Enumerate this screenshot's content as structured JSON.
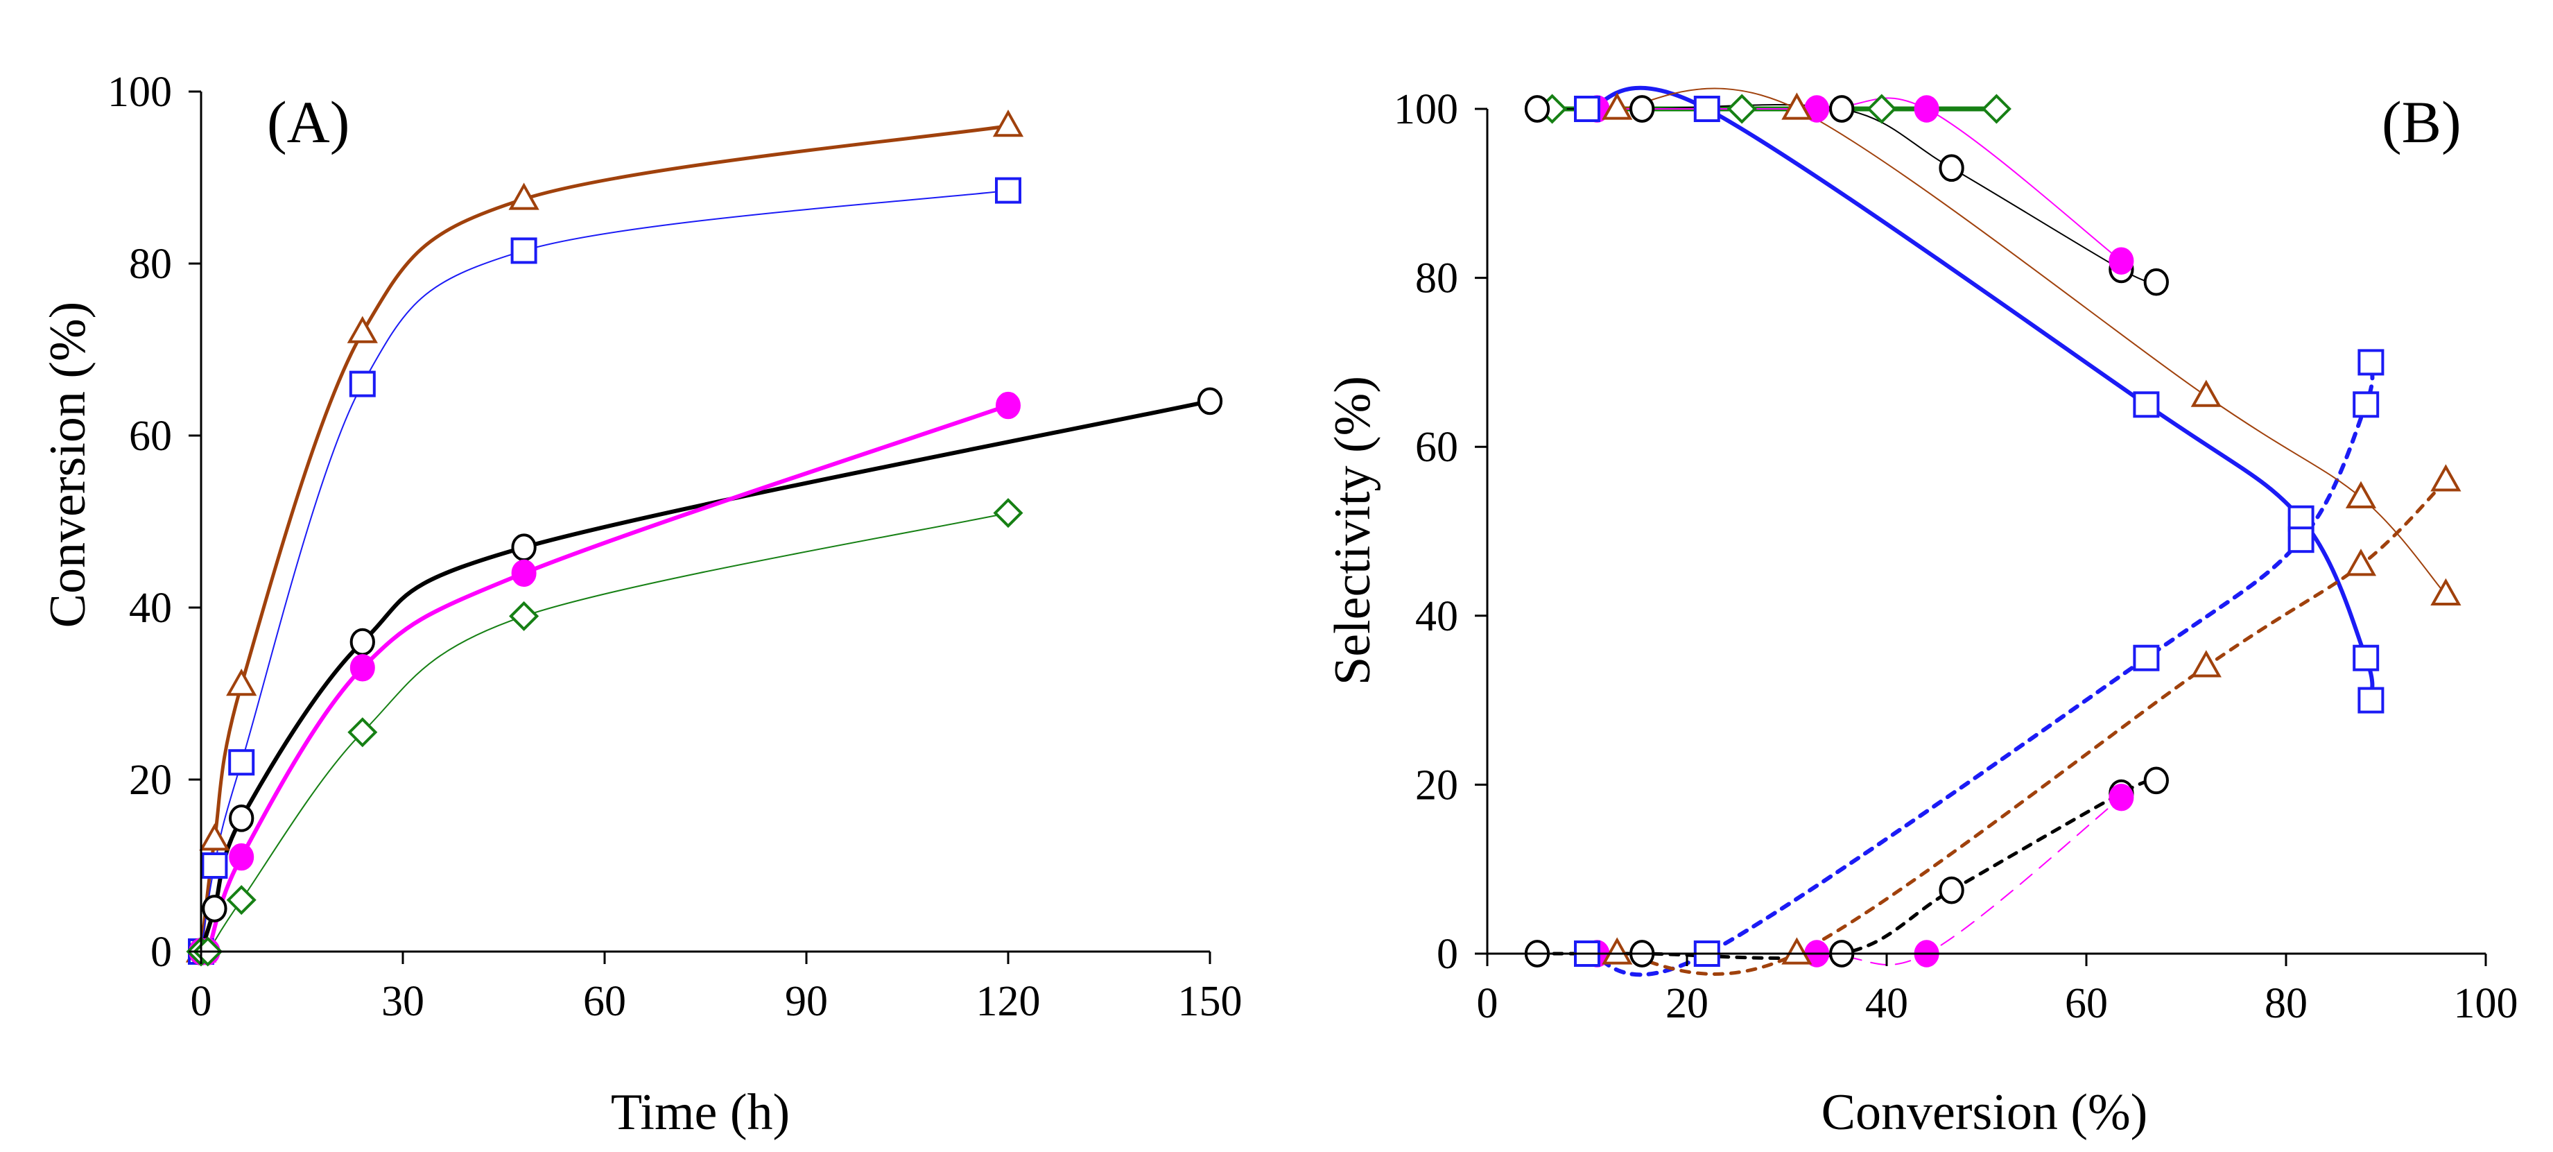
{
  "chart_data": [
    {
      "type": "line",
      "panel_label": "(A)",
      "xlabel": "Time (h)",
      "ylabel": "Conversion (%)",
      "xlim": [
        0,
        150
      ],
      "ylim": [
        0,
        100
      ],
      "xticks": [
        "0",
        "30",
        "60",
        "90",
        "120",
        "150"
      ],
      "yticks": [
        "0",
        "20",
        "40",
        "60",
        "80",
        "100"
      ],
      "grid": false,
      "series": [
        {
          "name": "triangle",
          "marker": "triangle",
          "color": "#A0410C",
          "line_width": 5,
          "x": [
            0,
            2,
            6,
            24,
            48,
            120
          ],
          "y": [
            0,
            13,
            31,
            72,
            87.5,
            96
          ]
        },
        {
          "name": "square",
          "marker": "square",
          "color": "#1B1BF5",
          "line_width": 2,
          "x": [
            0,
            2,
            6,
            24,
            48,
            120
          ],
          "y": [
            0,
            10,
            22,
            66,
            81.5,
            88.5
          ]
        },
        {
          "name": "circle",
          "marker": "circle",
          "color": "#000000",
          "line_width": 6,
          "x": [
            0,
            2,
            6,
            24,
            48,
            150
          ],
          "y": [
            0,
            5,
            15.5,
            36,
            47,
            64
          ]
        },
        {
          "name": "filled-circle",
          "marker": "filled-circle",
          "color": "#FF00FF",
          "line_width": 6,
          "x": [
            0,
            1,
            6,
            24,
            48,
            120
          ],
          "y": [
            0,
            0,
            11,
            33,
            44,
            63.5
          ]
        },
        {
          "name": "diamond",
          "marker": "diamond",
          "color": "#168014",
          "line_width": 2,
          "x": [
            0,
            1,
            6,
            24,
            48,
            120
          ],
          "y": [
            0,
            0,
            6,
            25.5,
            39,
            51
          ]
        }
      ]
    },
    {
      "type": "line",
      "panel_label": "(B)",
      "xlabel": "Conversion (%)",
      "ylabel": "Selectivity (%)",
      "xlim": [
        0,
        100
      ],
      "ylim": [
        0,
        100
      ],
      "xticks": [
        "0",
        "20",
        "40",
        "60",
        "80",
        "100"
      ],
      "yticks": [
        "0",
        "20",
        "40",
        "60",
        "80",
        "100"
      ],
      "grid": false,
      "series": [
        {
          "name": "diamond-selectivity",
          "marker": "diamond",
          "color": "#168014",
          "line_width": 7,
          "dash": "",
          "x": [
            6.5,
            25.5,
            39.5,
            51
          ],
          "y": [
            100,
            100,
            100,
            100
          ]
        },
        {
          "name": "circle-selectivity-product1",
          "marker": "circle",
          "color": "#000000",
          "line_width": 2,
          "dash": "",
          "x": [
            5,
            15.5,
            35.5,
            46.5,
            63.5,
            67
          ],
          "y": [
            100,
            100,
            100,
            93,
            81,
            79.5
          ]
        },
        {
          "name": "circle-selectivity-product2",
          "marker": "circle",
          "color": "#000000",
          "line_width": 5,
          "dash": "12 12",
          "x": [
            5,
            15.5,
            35.5,
            46.5,
            63.5,
            67
          ],
          "y": [
            0,
            0,
            0,
            7.5,
            19,
            20.5
          ]
        },
        {
          "name": "filled-circle-selectivity-product1",
          "marker": "filled-circle",
          "color": "#FF00FF",
          "line_width": 2,
          "dash": "",
          "x": [
            11,
            33,
            44,
            63.5
          ],
          "y": [
            100,
            100,
            100,
            82
          ]
        },
        {
          "name": "filled-circle-selectivity-product2",
          "marker": "filled-circle",
          "color": "#FF00FF",
          "line_width": 2,
          "dash": "22 14",
          "x": [
            11,
            33,
            44,
            63.5
          ],
          "y": [
            0,
            0,
            0,
            18.5
          ]
        },
        {
          "name": "square-selectivity-product1",
          "marker": "square",
          "color": "#1B1BF5",
          "line_width": 6,
          "dash": "",
          "x": [
            10,
            22,
            66,
            81.5,
            88,
            88.5
          ],
          "y": [
            100,
            100,
            65,
            51.5,
            35,
            30
          ]
        },
        {
          "name": "square-selectivity-product2",
          "marker": "square",
          "color": "#1B1BF5",
          "line_width": 6,
          "dash": "12 12",
          "x": [
            10,
            22,
            66,
            81.5,
            88,
            88.5
          ],
          "y": [
            0,
            0,
            35,
            49,
            65,
            70
          ]
        },
        {
          "name": "triangle-selectivity-product1",
          "marker": "triangle",
          "color": "#A0410C",
          "line_width": 2,
          "dash": "",
          "x": [
            13,
            31,
            72,
            87.5,
            96
          ],
          "y": [
            100,
            100,
            66,
            54,
            42.5
          ]
        },
        {
          "name": "triangle-selectivity-product2",
          "marker": "triangle",
          "color": "#A0410C",
          "line_width": 5,
          "dash": "12 12",
          "x": [
            13,
            31,
            72,
            87.5,
            96
          ],
          "y": [
            0,
            0,
            34,
            46,
            56
          ]
        }
      ]
    }
  ]
}
